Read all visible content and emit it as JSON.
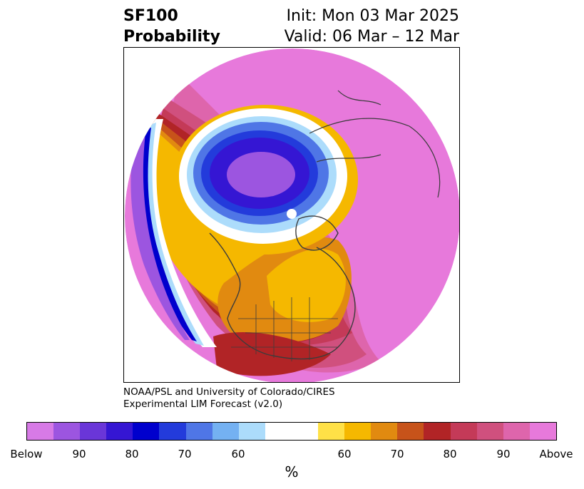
{
  "title": {
    "left_line1": "SF100",
    "left_line2": "Probability",
    "right_line1": "Init: Mon 03 Mar 2025",
    "right_line2": "Valid: 06 Mar – 12 Mar"
  },
  "credit": {
    "line1": "NOAA/PSL and University of Colorado/CIRES",
    "line2": "Experimental LIM Forecast (v2.0)"
  },
  "colorbar": {
    "unit": "%",
    "colors": [
      "#d77ae6",
      "#9c55e0",
      "#6a36d8",
      "#3516d3",
      "#0000cd",
      "#233bdb",
      "#4f76e6",
      "#74b1f2",
      "#acdcfb",
      "#ffffff",
      "#ffffff",
      "#ffe147",
      "#f5b800",
      "#e18a10",
      "#c7531a",
      "#b12426",
      "#c43a58",
      "#d0507e",
      "#de65ac",
      "#e779db"
    ],
    "tick_labels": [
      "Below",
      "90",
      "80",
      "70",
      "60",
      "60",
      "70",
      "80",
      "90",
      "Above"
    ]
  },
  "map": {
    "colors": {
      "above_high": "#e779db",
      "above_90": "#de65ac",
      "above_85": "#d0507e",
      "above_80": "#c43a58",
      "above_75": "#b12426",
      "above_70": "#c7531a",
      "above_65": "#e18a10",
      "above_60": "#f5b800",
      "above_55": "#ffe147",
      "neutral": "#ffffff",
      "below_55": "#acdcfb",
      "below_60": "#74b1f2",
      "below_65": "#4f76e6",
      "below_70": "#233bdb",
      "below_75": "#0000cd",
      "below_80": "#3516d3",
      "below_85": "#6a36d8",
      "below_90": "#9c55e0",
      "below_low": "#d77ae6",
      "coast": "#3c3c3c"
    }
  }
}
